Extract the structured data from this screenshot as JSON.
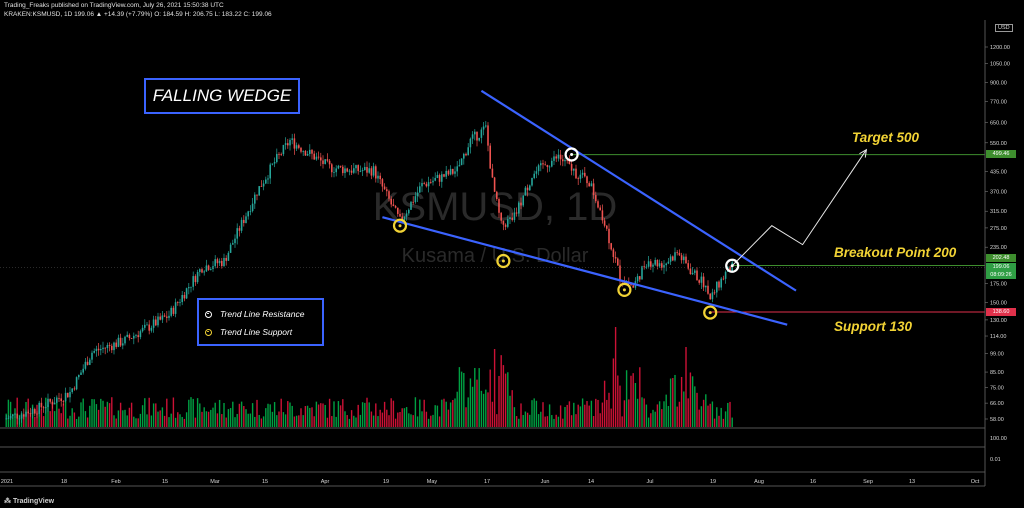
{
  "header": {
    "line1": "Trading_Freaks published on TradingView.com, July 26, 2021 15:50:38 UTC",
    "line2": "KRAKEN:KSMUSD, 1D  199.06 ▲ +14.39 (+7.79%) O: 184.59 H: 206.75 L: 183.22 C: 199.06"
  },
  "watermark": {
    "symbol": "KSMUSD, 1D",
    "name": "Kusama / U.S. Dollar"
  },
  "title_box": "FALLING WEDGE",
  "legend": [
    "Trend Line Resistance",
    "Trend Line Support"
  ],
  "annotations": {
    "target": "Target 500",
    "breakout": "Breakout Point 200",
    "support": "Support 130"
  },
  "price_tags": {
    "target": "499.46",
    "breakout": "202.48",
    "current": "199.06",
    "countdown": "08:09:26",
    "support": "138.60"
  },
  "currency": "USD",
  "footer": "TradingView",
  "colors": {
    "up": "#26a69a",
    "down": "#ef5350",
    "up_bar": "#00c853",
    "down_bar": "#ff1744",
    "trend": "#3b63ff",
    "accent": "#f2d335"
  },
  "chart_data": {
    "type": "candlestick",
    "scale": "log",
    "y_ticks": [
      1200,
      1050,
      900,
      770,
      650,
      550,
      499.46,
      435,
      370,
      315,
      275,
      235,
      202.48,
      199.06,
      175,
      150,
      138.6,
      130,
      114,
      99,
      85,
      75,
      66,
      58
    ],
    "lower_ticks": [
      "100.00",
      "0.01"
    ],
    "x_labels": [
      "2021",
      "18",
      "Feb",
      "15",
      "Mar",
      "15",
      "Apr",
      "19",
      "May",
      "17",
      "Jun",
      "14",
      "Jul",
      "19",
      "Aug",
      "16",
      "Sep",
      "13",
      "Oct"
    ],
    "price_path": [
      {
        "d": 0,
        "p": 58
      },
      {
        "d": 15,
        "p": 63
      },
      {
        "d": 30,
        "p": 72
      },
      {
        "d": 40,
        "p": 100
      },
      {
        "d": 55,
        "p": 110
      },
      {
        "d": 75,
        "p": 135
      },
      {
        "d": 90,
        "p": 200
      },
      {
        "d": 100,
        "p": 210
      },
      {
        "d": 115,
        "p": 370
      },
      {
        "d": 123,
        "p": 470
      },
      {
        "d": 130,
        "p": 560
      },
      {
        "d": 138,
        "p": 510
      },
      {
        "d": 148,
        "p": 450
      },
      {
        "d": 160,
        "p": 440
      },
      {
        "d": 168,
        "p": 440
      },
      {
        "d": 180,
        "p": 290
      },
      {
        "d": 190,
        "p": 390
      },
      {
        "d": 200,
        "p": 420
      },
      {
        "d": 206,
        "p": 440
      },
      {
        "d": 212,
        "p": 560
      },
      {
        "d": 219,
        "p": 620
      },
      {
        "d": 222,
        "p": 400
      },
      {
        "d": 226,
        "p": 280
      },
      {
        "d": 232,
        "p": 300
      },
      {
        "d": 240,
        "p": 420
      },
      {
        "d": 246,
        "p": 460
      },
      {
        "d": 252,
        "p": 490
      },
      {
        "d": 260,
        "p": 430
      },
      {
        "d": 266,
        "p": 400
      },
      {
        "d": 272,
        "p": 305
      },
      {
        "d": 280,
        "p": 185
      },
      {
        "d": 286,
        "p": 170
      },
      {
        "d": 292,
        "p": 210
      },
      {
        "d": 300,
        "p": 205
      },
      {
        "d": 306,
        "p": 225
      },
      {
        "d": 312,
        "p": 195
      },
      {
        "d": 318,
        "p": 175
      },
      {
        "d": 321,
        "p": 152
      },
      {
        "d": 324,
        "p": 170
      },
      {
        "d": 328,
        "p": 190
      },
      {
        "d": 331,
        "p": 199
      }
    ],
    "resistance_line": [
      {
        "d": 217,
        "p": 840
      },
      {
        "d": 360,
        "p": 165
      }
    ],
    "support_line": [
      {
        "d": 172,
        "p": 300
      },
      {
        "d": 356,
        "p": 125
      }
    ],
    "touch_points": [
      {
        "d": 258,
        "p": 500,
        "type": "resistance"
      },
      {
        "d": 331,
        "p": 202,
        "type": "resistance"
      },
      {
        "d": 180,
        "p": 280,
        "type": "support"
      },
      {
        "d": 227,
        "p": 210,
        "type": "support"
      },
      {
        "d": 282,
        "p": 166,
        "type": "support"
      },
      {
        "d": 321,
        "p": 138,
        "type": "support"
      }
    ],
    "projection": [
      {
        "d": 331,
        "p": 202
      },
      {
        "d": 349,
        "p": 280
      },
      {
        "d": 363,
        "p": 240
      },
      {
        "d": 392,
        "p": 520
      }
    ],
    "levels": {
      "target": 499.46,
      "breakout": 202.48,
      "support": 138.6
    }
  }
}
